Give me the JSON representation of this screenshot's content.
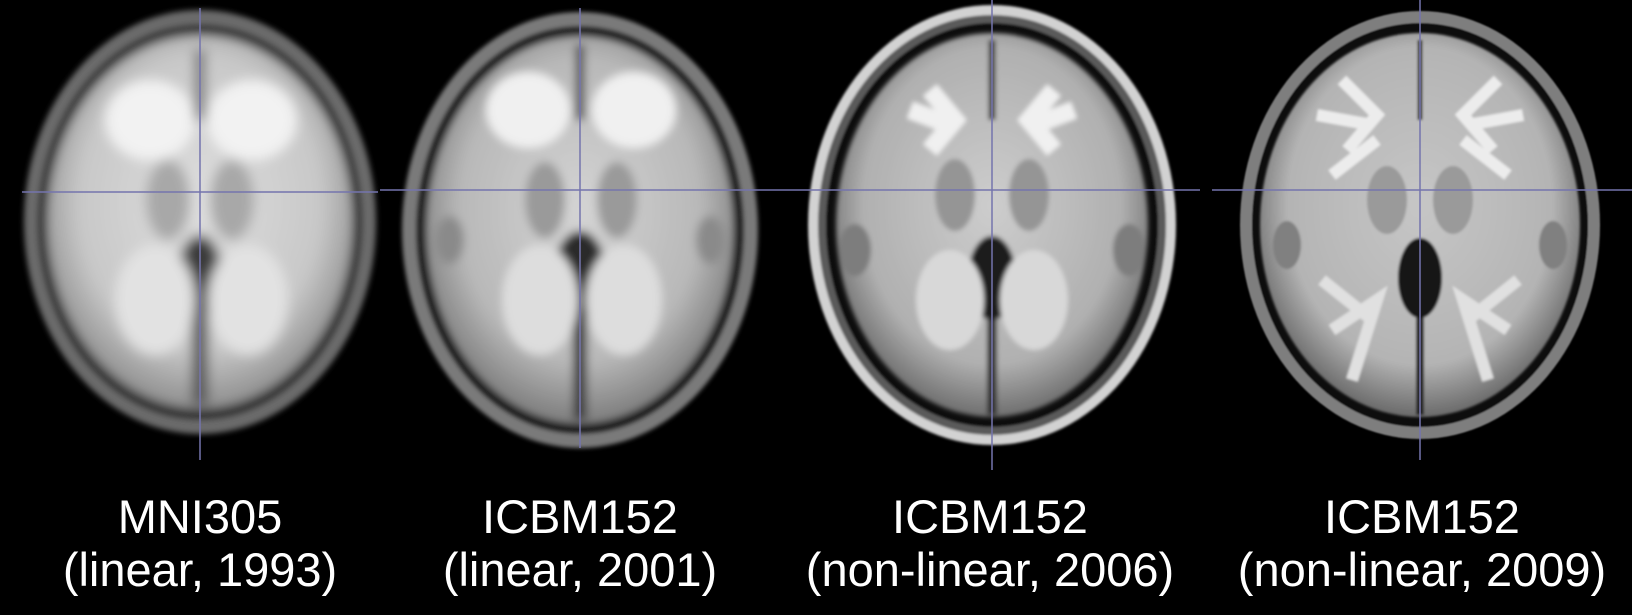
{
  "colors": {
    "background": "#000000",
    "crosshair": "#7474ad",
    "caption": "#ffffff"
  },
  "templates": [
    {
      "name": "MNI305",
      "detail": "(linear, 1993)"
    },
    {
      "name": "ICBM152",
      "detail": "(linear, 2001)"
    },
    {
      "name": "ICBM152",
      "detail": "(non-linear, 2006)"
    },
    {
      "name": "ICBM152",
      "detail": "(non-linear, 2009)"
    }
  ]
}
